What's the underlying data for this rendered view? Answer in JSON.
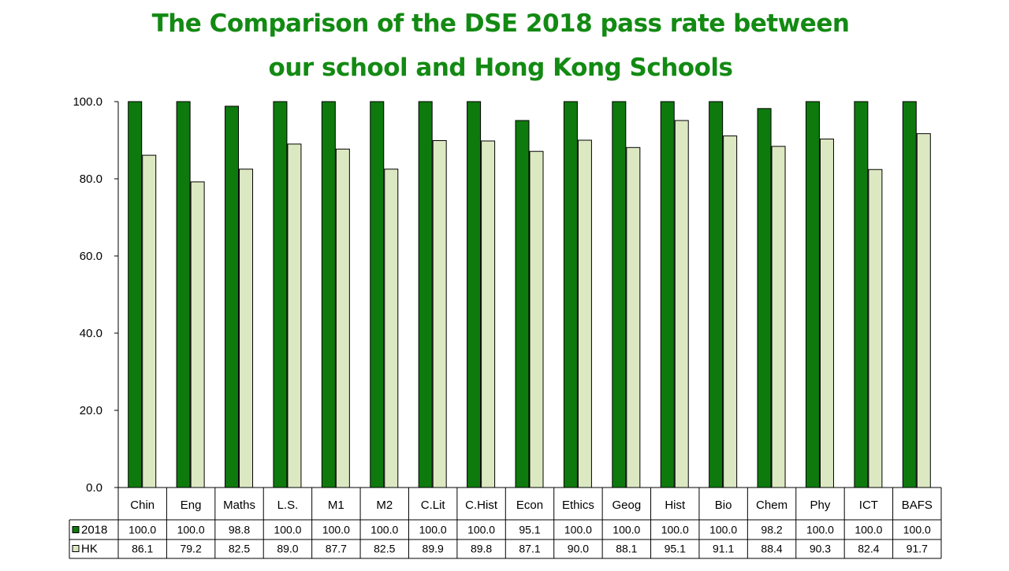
{
  "title_line1": "The Comparison of the DSE 2018 pass rate between",
  "title_line2": "our school and Hong Kong Schools",
  "chart_data": {
    "type": "bar",
    "title": "The Comparison of the DSE 2018 pass rate between our school and Hong Kong Schools",
    "categories": [
      "Chin",
      "Eng",
      "Maths",
      "L.S.",
      "M1",
      "M2",
      "C.Lit",
      "C.Hist",
      "Econ",
      "Ethics",
      "Geog",
      "Hist",
      "Bio",
      "Chem",
      "Phy",
      "ICT",
      "BAFS"
    ],
    "series": [
      {
        "name": "2018",
        "color": "#0E7A0E",
        "values": [
          100.0,
          100.0,
          98.8,
          100.0,
          100.0,
          100.0,
          100.0,
          100.0,
          95.1,
          100.0,
          100.0,
          100.0,
          100.0,
          98.2,
          100.0,
          100.0,
          100.0
        ],
        "labels": [
          "100.0",
          "100.0",
          "98.8",
          "100.0",
          "100.0",
          "100.0",
          "100.0",
          "100.0",
          "95.1",
          "100.0",
          "100.0",
          "100.0",
          "100.0",
          "98.2",
          "100.0",
          "100.0",
          "100.0"
        ]
      },
      {
        "name": "HK",
        "color": "#DCE8C2",
        "values": [
          86.1,
          79.2,
          82.5,
          89.0,
          87.7,
          82.5,
          89.9,
          89.8,
          87.1,
          90.0,
          88.1,
          95.1,
          91.1,
          88.4,
          90.3,
          82.4,
          91.7
        ],
        "labels": [
          "86.1",
          "79.2",
          "82.5",
          "89.0",
          "87.7",
          "82.5",
          "89.9",
          "89.8",
          "87.1",
          "90.0",
          "88.1",
          "95.1",
          "91.1",
          "88.4",
          "90.3",
          "82.4",
          "91.7"
        ]
      }
    ],
    "ylim": [
      0,
      100
    ],
    "yticks": [
      "0.0",
      "20.0",
      "40.0",
      "60.0",
      "80.0",
      "100.0"
    ],
    "grid": false,
    "legend": "data-table"
  }
}
